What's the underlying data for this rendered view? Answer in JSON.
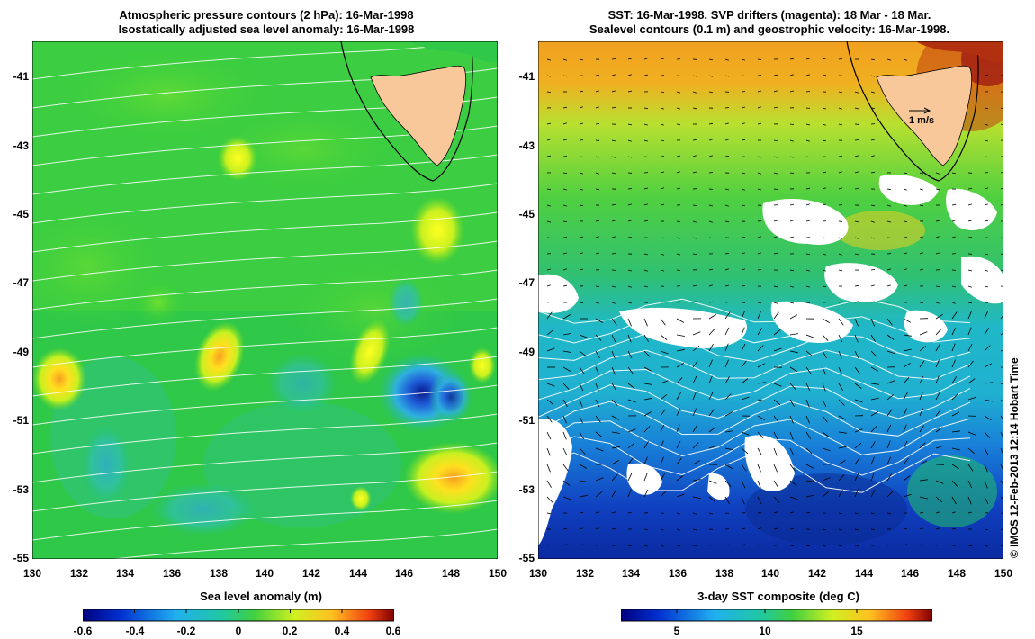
{
  "left_panel": {
    "title_line1": "Atmospheric pressure contours (2 hPa): 16-Mar-1998",
    "title_line2": "Isostatically adjusted sea level anomaly: 16-Mar-1998",
    "y_ticks": [
      "-41",
      "-43",
      "-45",
      "-47",
      "-49",
      "-51",
      "-53",
      "-55"
    ],
    "x_ticks": [
      "130",
      "132",
      "134",
      "136",
      "138",
      "140",
      "142",
      "144",
      "146",
      "148",
      "150"
    ],
    "colorbar": {
      "label": "Sea level anomaly (m)",
      "ticks": [
        "-0.6",
        "-0.4",
        "-0.2",
        "0",
        "0.2",
        "0.4",
        "0.6"
      ]
    }
  },
  "right_panel": {
    "title_line1": "SST: 16-Mar-1998. SVP drifters (magenta): 18 Mar - 18 Mar.",
    "title_line2": "Sealevel contours (0.1 m) and geostrophic velocity: 16-Mar-1998.",
    "y_ticks": [
      "-41",
      "-43",
      "-45",
      "-47",
      "-49",
      "-51",
      "-53",
      "-55"
    ],
    "x_ticks": [
      "130",
      "132",
      "134",
      "136",
      "138",
      "140",
      "142",
      "144",
      "146",
      "148",
      "150"
    ],
    "scale_arrow_label": "1 m/s",
    "colorbar": {
      "label": "3-day SST composite (deg C)",
      "ticks": [
        "5",
        "10",
        "15"
      ]
    }
  },
  "credit": "© IMOS 12-Feb-2013 12:14 Hobart Time",
  "colors": {
    "land": "#f8c79a",
    "cloud": "#ffffff",
    "contour": "#ffffff",
    "coast": "#000000"
  }
}
